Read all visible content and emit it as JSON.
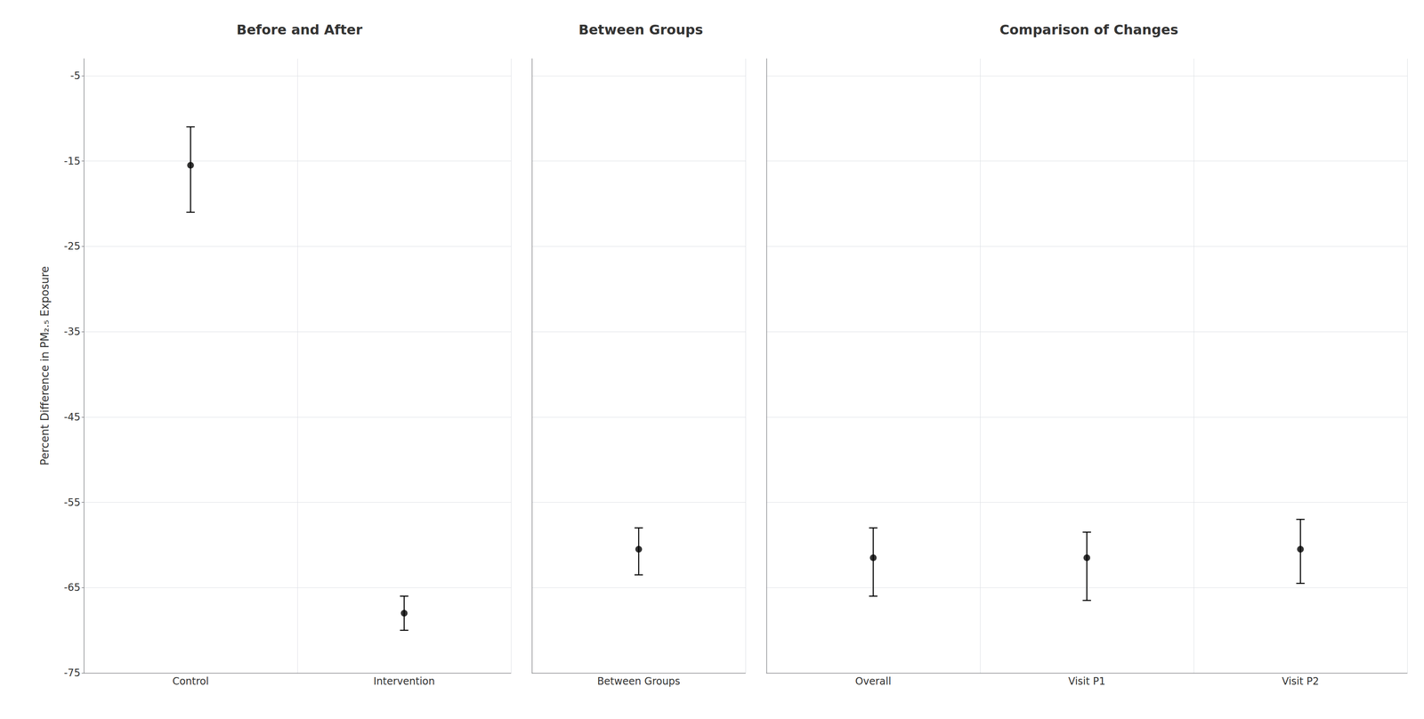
{
  "chart_data": [
    {
      "type": "scatter",
      "title": "Before and After",
      "categories": [
        "Control",
        "Intervention"
      ],
      "values": [
        -15.5,
        -68.0
      ],
      "err_upper": [
        4.5,
        2.0
      ],
      "err_lower": [
        5.5,
        2.0
      ],
      "ylabel": "Percent Difference in PM₂.₅ Exposure",
      "ylim": [
        -75,
        -3
      ],
      "yticks": [
        -75,
        -65,
        -55,
        -45,
        -35,
        -25,
        -15,
        -5
      ],
      "grid": true,
      "color": "#000000"
    },
    {
      "type": "scatter",
      "title": "Between Groups",
      "categories": [
        "Between Groups"
      ],
      "values": [
        -60.5
      ],
      "err_upper": [
        2.5
      ],
      "err_lower": [
        3.0
      ],
      "ylim": [
        -75,
        -3
      ],
      "yticks": [
        -75,
        -65,
        -55,
        -45,
        -35,
        -25,
        -15,
        -5
      ],
      "grid": true,
      "color": "#000000",
      "tick_labels": "x"
    },
    {
      "type": "scatter",
      "title": "Comparison of Changes",
      "categories": [
        "Overall",
        "Visit P1",
        "Visit P2"
      ],
      "values": [
        -61.5,
        -61.5,
        -60.5
      ],
      "err_upper": [
        3.5,
        3.0,
        3.5
      ],
      "err_lower": [
        4.5,
        5.0,
        4.0
      ],
      "ylim": [
        -75,
        -3
      ],
      "yticks": [
        -75,
        -65,
        -55,
        -45,
        -35,
        -25,
        -15,
        -5
      ],
      "grid": true,
      "color": "#000000",
      "tick_labels": "x"
    }
  ]
}
